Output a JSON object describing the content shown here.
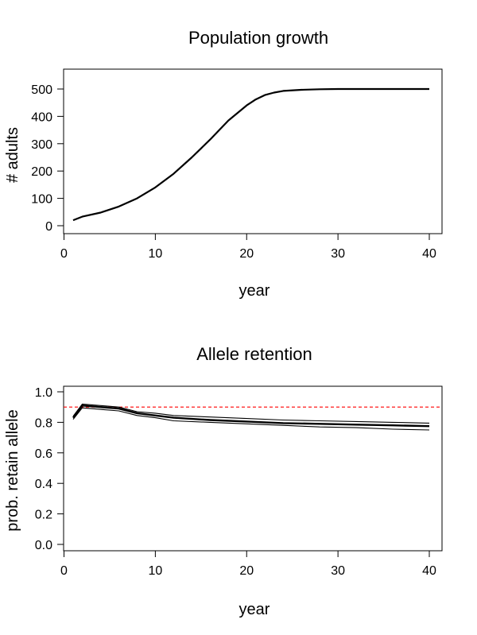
{
  "chart_data": [
    {
      "type": "line",
      "title": "Population growth",
      "xlabel": "year",
      "ylabel": "# adults",
      "xlim": [
        1,
        40
      ],
      "ylim": [
        0,
        500
      ],
      "xticks": [
        0,
        10,
        20,
        30,
        40
      ],
      "yticks": [
        0,
        100,
        200,
        300,
        400,
        500
      ],
      "grid": false,
      "series": [
        {
          "color": "#000000",
          "x": [
            1,
            2,
            4,
            6,
            8,
            10,
            12,
            14,
            16,
            18,
            20,
            21,
            22,
            23,
            24,
            26,
            28,
            30,
            35,
            40
          ],
          "y": [
            20,
            33,
            48,
            70,
            100,
            140,
            190,
            250,
            315,
            385,
            440,
            462,
            478,
            487,
            493,
            497,
            499,
            500,
            500,
            500
          ]
        }
      ]
    },
    {
      "type": "line",
      "title": "Allele retention",
      "xlabel": "year",
      "ylabel": "prob. retain allele",
      "xlim": [
        1,
        40
      ],
      "ylim": [
        0,
        1
      ],
      "xticks": [
        0,
        10,
        20,
        30,
        40
      ],
      "yticks": [
        "0.0",
        "0.2",
        "0.4",
        "0.6",
        "0.8",
        "1.0"
      ],
      "grid": false,
      "reference_line": {
        "y": 0.9,
        "color": "#ff0000",
        "style": "dashed"
      },
      "series": [
        {
          "color": "#000000",
          "x": [
            1,
            2,
            4,
            6,
            8,
            10,
            12,
            16,
            20,
            24,
            28,
            32,
            36,
            40
          ],
          "y": [
            0.84,
            0.92,
            0.91,
            0.9,
            0.87,
            0.86,
            0.845,
            0.835,
            0.825,
            0.815,
            0.81,
            0.805,
            0.8,
            0.795
          ]
        },
        {
          "color": "#000000",
          "x": [
            1,
            2,
            4,
            6,
            8,
            10,
            12,
            16,
            20,
            24,
            28,
            32,
            36,
            40
          ],
          "y": [
            0.83,
            0.91,
            0.9,
            0.89,
            0.86,
            0.845,
            0.83,
            0.815,
            0.805,
            0.795,
            0.79,
            0.785,
            0.78,
            0.775
          ]
        },
        {
          "color": "#000000",
          "x": [
            1,
            2,
            4,
            6,
            8,
            10,
            12,
            16,
            20,
            24,
            28,
            32,
            36,
            40
          ],
          "y": [
            0.82,
            0.895,
            0.885,
            0.875,
            0.845,
            0.83,
            0.81,
            0.8,
            0.79,
            0.78,
            0.77,
            0.765,
            0.755,
            0.75
          ]
        }
      ]
    }
  ]
}
